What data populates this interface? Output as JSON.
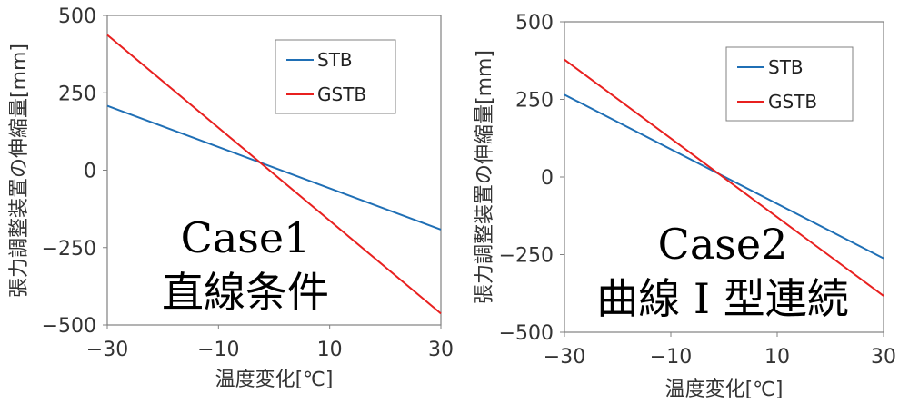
{
  "chart_data": [
    {
      "type": "line",
      "x": [
        -30,
        30
      ],
      "series": [
        {
          "name": "STB",
          "values": [
            208,
            -192
          ],
          "color": "#1f6fb5"
        },
        {
          "name": "GSTB",
          "values": [
            437,
            -463
          ],
          "color": "#e8201f"
        }
      ],
      "xlabel": "温度変化[℃]",
      "ylabel": "張力調整装置の伸縮量[mm]",
      "xlim": [
        -30,
        30
      ],
      "ylim": [
        -500,
        500
      ],
      "xticks": [
        "−30",
        "−10",
        "10",
        "30"
      ],
      "yticks": [
        "500",
        "250",
        "0",
        "−250",
        "−500"
      ],
      "annotation": [
        "Case1",
        "直線条件"
      ],
      "legend": "top-right",
      "grid": false
    },
    {
      "type": "line",
      "x": [
        -30,
        30
      ],
      "series": [
        {
          "name": "STB",
          "values": [
            265,
            -262
          ],
          "color": "#1f6fb5"
        },
        {
          "name": "GSTB",
          "values": [
            378,
            -383
          ],
          "color": "#e8201f"
        }
      ],
      "xlabel": "温度変化[℃]",
      "ylabel": "張力調整装置の伸縮量[mm]",
      "xlim": [
        -30,
        30
      ],
      "ylim": [
        -500,
        500
      ],
      "xticks": [
        "−30",
        "−10",
        "10",
        "30"
      ],
      "yticks": [
        "500",
        "250",
        "0",
        "−250",
        "−500"
      ],
      "annotation": [
        "Case2",
        "曲線 I 型連続"
      ],
      "legend": "top-right",
      "grid": false
    }
  ]
}
